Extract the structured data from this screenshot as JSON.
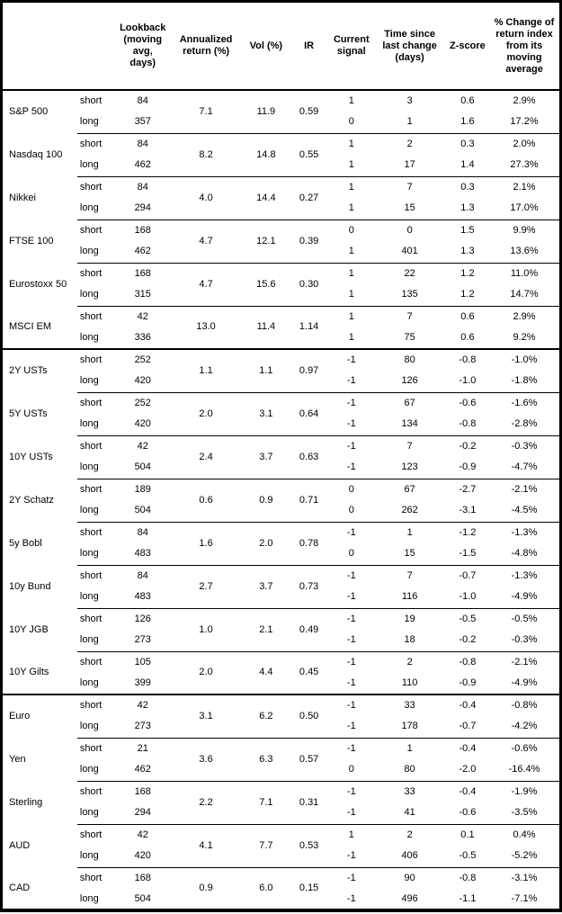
{
  "colors": {
    "text": "#000000",
    "background": "#ffffff",
    "border": "#000000"
  },
  "table": {
    "header_cols": [
      "",
      "",
      "Lookback (moving avg, days)",
      "Annualized return (%)",
      "Vol (%)",
      "IR",
      "Current signal",
      "Time since last change (days)",
      "Z-score",
      "% Change of return index from its moving average"
    ],
    "row_labels": {
      "short": "short",
      "long": "long"
    },
    "assets": [
      {
        "name": "S&P 500",
        "group_end": false,
        "annualized_return_pct": "7.1",
        "vol_pct": "11.9",
        "ir": "0.59",
        "short": {
          "lookback": "84",
          "signal": "1",
          "time_since_change": "3",
          "z_score": "0.6",
          "pct_change_from_ma": "2.9%"
        },
        "long": {
          "lookback": "357",
          "signal": "0",
          "time_since_change": "1",
          "z_score": "1.6",
          "pct_change_from_ma": "17.2%"
        }
      },
      {
        "name": "Nasdaq 100",
        "group_end": false,
        "annualized_return_pct": "8.2",
        "vol_pct": "14.8",
        "ir": "0.55",
        "short": {
          "lookback": "84",
          "signal": "1",
          "time_since_change": "2",
          "z_score": "0.3",
          "pct_change_from_ma": "2.0%"
        },
        "long": {
          "lookback": "462",
          "signal": "1",
          "time_since_change": "17",
          "z_score": "1.4",
          "pct_change_from_ma": "27.3%"
        }
      },
      {
        "name": "Nikkei",
        "group_end": false,
        "annualized_return_pct": "4.0",
        "vol_pct": "14.4",
        "ir": "0.27",
        "short": {
          "lookback": "84",
          "signal": "1",
          "time_since_change": "7",
          "z_score": "0.3",
          "pct_change_from_ma": "2.1%"
        },
        "long": {
          "lookback": "294",
          "signal": "1",
          "time_since_change": "15",
          "z_score": "1.3",
          "pct_change_from_ma": "17.0%"
        }
      },
      {
        "name": "FTSE 100",
        "group_end": false,
        "annualized_return_pct": "4.7",
        "vol_pct": "12.1",
        "ir": "0.39",
        "short": {
          "lookback": "168",
          "signal": "0",
          "time_since_change": "0",
          "z_score": "1.5",
          "pct_change_from_ma": "9.9%"
        },
        "long": {
          "lookback": "462",
          "signal": "1",
          "time_since_change": "401",
          "z_score": "1.3",
          "pct_change_from_ma": "13.6%"
        }
      },
      {
        "name": "Eurostoxx 50",
        "group_end": false,
        "annualized_return_pct": "4.7",
        "vol_pct": "15.6",
        "ir": "0.30",
        "short": {
          "lookback": "168",
          "signal": "1",
          "time_since_change": "22",
          "z_score": "1.2",
          "pct_change_from_ma": "11.0%"
        },
        "long": {
          "lookback": "315",
          "signal": "1",
          "time_since_change": "135",
          "z_score": "1.2",
          "pct_change_from_ma": "14.7%"
        }
      },
      {
        "name": "MSCI EM",
        "group_end": true,
        "annualized_return_pct": "13.0",
        "vol_pct": "11.4",
        "ir": "1.14",
        "short": {
          "lookback": "42",
          "signal": "1",
          "time_since_change": "7",
          "z_score": "0.6",
          "pct_change_from_ma": "2.9%"
        },
        "long": {
          "lookback": "336",
          "signal": "1",
          "time_since_change": "75",
          "z_score": "0.6",
          "pct_change_from_ma": "9.2%"
        }
      },
      {
        "name": "2Y USTs",
        "group_end": false,
        "annualized_return_pct": "1.1",
        "vol_pct": "1.1",
        "ir": "0.97",
        "short": {
          "lookback": "252",
          "signal": "-1",
          "time_since_change": "80",
          "z_score": "-0.8",
          "pct_change_from_ma": "-1.0%"
        },
        "long": {
          "lookback": "420",
          "signal": "-1",
          "time_since_change": "126",
          "z_score": "-1.0",
          "pct_change_from_ma": "-1.8%"
        }
      },
      {
        "name": "5Y USTs",
        "group_end": false,
        "annualized_return_pct": "2.0",
        "vol_pct": "3.1",
        "ir": "0.64",
        "short": {
          "lookback": "252",
          "signal": "-1",
          "time_since_change": "67",
          "z_score": "-0.6",
          "pct_change_from_ma": "-1.6%"
        },
        "long": {
          "lookback": "420",
          "signal": "-1",
          "time_since_change": "134",
          "z_score": "-0.8",
          "pct_change_from_ma": "-2.8%"
        }
      },
      {
        "name": "10Y USTs",
        "group_end": false,
        "annualized_return_pct": "2.4",
        "vol_pct": "3.7",
        "ir": "0.63",
        "short": {
          "lookback": "42",
          "signal": "-1",
          "time_since_change": "7",
          "z_score": "-0.2",
          "pct_change_from_ma": "-0.3%"
        },
        "long": {
          "lookback": "504",
          "signal": "-1",
          "time_since_change": "123",
          "z_score": "-0.9",
          "pct_change_from_ma": "-4.7%"
        }
      },
      {
        "name": "2Y Schatz",
        "group_end": false,
        "annualized_return_pct": "0.6",
        "vol_pct": "0.9",
        "ir": "0.71",
        "short": {
          "lookback": "189",
          "signal": "0",
          "time_since_change": "67",
          "z_score": "-2.7",
          "pct_change_from_ma": "-2.1%"
        },
        "long": {
          "lookback": "504",
          "signal": "0",
          "time_since_change": "262",
          "z_score": "-3.1",
          "pct_change_from_ma": "-4.5%"
        }
      },
      {
        "name": "5y Bobl",
        "group_end": false,
        "annualized_return_pct": "1.6",
        "vol_pct": "2.0",
        "ir": "0.78",
        "short": {
          "lookback": "84",
          "signal": "-1",
          "time_since_change": "1",
          "z_score": "-1.2",
          "pct_change_from_ma": "-1.3%"
        },
        "long": {
          "lookback": "483",
          "signal": "0",
          "time_since_change": "15",
          "z_score": "-1.5",
          "pct_change_from_ma": "-4.8%"
        }
      },
      {
        "name": "10y Bund",
        "group_end": false,
        "annualized_return_pct": "2.7",
        "vol_pct": "3.7",
        "ir": "0.73",
        "short": {
          "lookback": "84",
          "signal": "-1",
          "time_since_change": "7",
          "z_score": "-0.7",
          "pct_change_from_ma": "-1.3%"
        },
        "long": {
          "lookback": "483",
          "signal": "-1",
          "time_since_change": "116",
          "z_score": "-1.0",
          "pct_change_from_ma": "-4.9%"
        }
      },
      {
        "name": "10Y JGB",
        "group_end": false,
        "annualized_return_pct": "1.0",
        "vol_pct": "2.1",
        "ir": "0.49",
        "short": {
          "lookback": "126",
          "signal": "-1",
          "time_since_change": "19",
          "z_score": "-0.5",
          "pct_change_from_ma": "-0.5%"
        },
        "long": {
          "lookback": "273",
          "signal": "-1",
          "time_since_change": "18",
          "z_score": "-0.2",
          "pct_change_from_ma": "-0.3%"
        }
      },
      {
        "name": "10Y Gilts",
        "group_end": true,
        "annualized_return_pct": "2.0",
        "vol_pct": "4.4",
        "ir": "0.45",
        "short": {
          "lookback": "105",
          "signal": "-1",
          "time_since_change": "2",
          "z_score": "-0.8",
          "pct_change_from_ma": "-2.1%"
        },
        "long": {
          "lookback": "399",
          "signal": "-1",
          "time_since_change": "110",
          "z_score": "-0.9",
          "pct_change_from_ma": "-4.9%"
        }
      },
      {
        "name": "Euro",
        "group_end": false,
        "annualized_return_pct": "3.1",
        "vol_pct": "6.2",
        "ir": "0.50",
        "short": {
          "lookback": "42",
          "signal": "-1",
          "time_since_change": "33",
          "z_score": "-0.4",
          "pct_change_from_ma": "-0.8%"
        },
        "long": {
          "lookback": "273",
          "signal": "-1",
          "time_since_change": "178",
          "z_score": "-0.7",
          "pct_change_from_ma": "-4.2%"
        }
      },
      {
        "name": "Yen",
        "group_end": false,
        "annualized_return_pct": "3.6",
        "vol_pct": "6.3",
        "ir": "0.57",
        "short": {
          "lookback": "21",
          "signal": "-1",
          "time_since_change": "1",
          "z_score": "-0.4",
          "pct_change_from_ma": "-0.6%"
        },
        "long": {
          "lookback": "462",
          "signal": "0",
          "time_since_change": "80",
          "z_score": "-2.0",
          "pct_change_from_ma": "-16.4%"
        }
      },
      {
        "name": "Sterling",
        "group_end": false,
        "annualized_return_pct": "2.2",
        "vol_pct": "7.1",
        "ir": "0.31",
        "short": {
          "lookback": "168",
          "signal": "-1",
          "time_since_change": "33",
          "z_score": "-0.4",
          "pct_change_from_ma": "-1.9%"
        },
        "long": {
          "lookback": "294",
          "signal": "-1",
          "time_since_change": "41",
          "z_score": "-0.6",
          "pct_change_from_ma": "-3.5%"
        }
      },
      {
        "name": "AUD",
        "group_end": false,
        "annualized_return_pct": "4.1",
        "vol_pct": "7.7",
        "ir": "0.53",
        "short": {
          "lookback": "42",
          "signal": "1",
          "time_since_change": "2",
          "z_score": "0.1",
          "pct_change_from_ma": "0.4%"
        },
        "long": {
          "lookback": "420",
          "signal": "-1",
          "time_since_change": "406",
          "z_score": "-0.5",
          "pct_change_from_ma": "-5.2%"
        }
      },
      {
        "name": "CAD",
        "group_end": false,
        "annualized_return_pct": "0.9",
        "vol_pct": "6.0",
        "ir": "0.15",
        "short": {
          "lookback": "168",
          "signal": "-1",
          "time_since_change": "90",
          "z_score": "-0.8",
          "pct_change_from_ma": "-3.1%"
        },
        "long": {
          "lookback": "504",
          "signal": "-1",
          "time_since_change": "496",
          "z_score": "-1.1",
          "pct_change_from_ma": "-7.1%"
        }
      }
    ]
  }
}
